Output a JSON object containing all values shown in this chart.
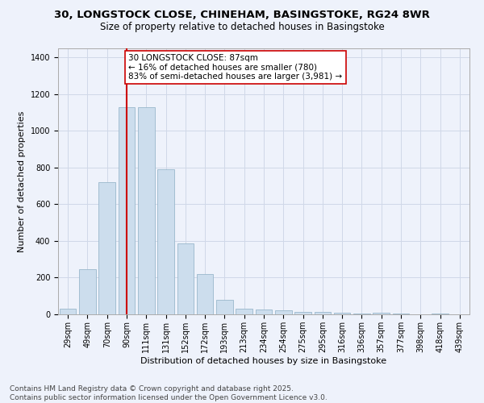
{
  "title_line1": "30, LONGSTOCK CLOSE, CHINEHAM, BASINGSTOKE, RG24 8WR",
  "title_line2": "Size of property relative to detached houses in Basingstoke",
  "xlabel": "Distribution of detached houses by size in Basingstoke",
  "ylabel": "Number of detached properties",
  "categories": [
    "29sqm",
    "49sqm",
    "70sqm",
    "90sqm",
    "111sqm",
    "131sqm",
    "152sqm",
    "172sqm",
    "193sqm",
    "213sqm",
    "234sqm",
    "254sqm",
    "275sqm",
    "295sqm",
    "316sqm",
    "336sqm",
    "357sqm",
    "377sqm",
    "398sqm",
    "418sqm",
    "439sqm"
  ],
  "values": [
    30,
    245,
    720,
    1130,
    1130,
    790,
    385,
    220,
    80,
    30,
    25,
    20,
    15,
    15,
    10,
    5,
    10,
    5,
    0,
    5,
    0
  ],
  "bar_color": "#ccdded",
  "bar_edge_color": "#9ab8cc",
  "vline_color": "#cc0000",
  "annotation_text": "30 LONGSTOCK CLOSE: 87sqm\n← 16% of detached houses are smaller (780)\n83% of semi-detached houses are larger (3,981) →",
  "annotation_box_color": "#ffffff",
  "annotation_box_edge_color": "#cc0000",
  "ylim": [
    0,
    1450
  ],
  "yticks": [
    0,
    200,
    400,
    600,
    800,
    1000,
    1200,
    1400
  ],
  "grid_color": "#d0d8e8",
  "background_color": "#eef2fb",
  "footer_line1": "Contains HM Land Registry data © Crown copyright and database right 2025.",
  "footer_line2": "Contains public sector information licensed under the Open Government Licence v3.0.",
  "title_fontsize": 9.5,
  "subtitle_fontsize": 8.5,
  "axis_label_fontsize": 8,
  "tick_fontsize": 7,
  "annotation_fontsize": 7.5,
  "footer_fontsize": 6.5
}
